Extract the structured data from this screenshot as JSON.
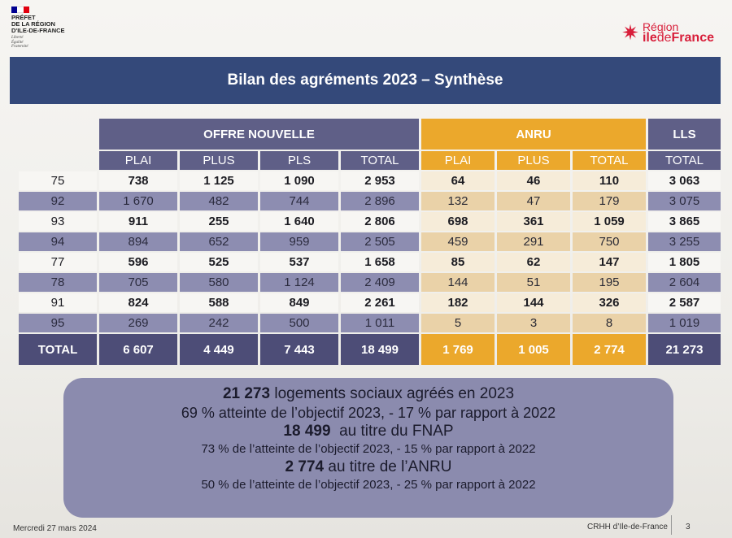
{
  "header": {
    "prefet_title_lines": [
      "PRÉFET",
      "DE LA RÉGION",
      "D'ILE-DE-FRANCE"
    ],
    "prefet_motto": [
      "Liberté",
      "Égalité",
      "Fraternité"
    ],
    "region_logo_line1": "Région",
    "region_logo_ile": "ile",
    "region_logo_de": "de",
    "region_logo_france": "France",
    "colors": {
      "flag_blue": "#000091",
      "flag_white": "#ffffff",
      "flag_red": "#e1000f",
      "region_red": "#d81e3a"
    }
  },
  "title": "Bilan des agréments 2023 – Synthèse",
  "table": {
    "groups": {
      "offre_nouvelle": "OFFRE NOUVELLE",
      "anru": "ANRU",
      "lls": "LLS"
    },
    "subheaders": [
      "PLAI",
      "PLUS",
      "PLS",
      "TOTAL",
      "PLAI",
      "PLUS",
      "TOTAL",
      "TOTAL"
    ],
    "rows": [
      {
        "dept": "75",
        "cells": [
          "738",
          "1 125",
          "1 090",
          "2 953",
          "64",
          "46",
          "110",
          "3 063"
        ]
      },
      {
        "dept": "92",
        "cells": [
          "1 670",
          "482",
          "744",
          "2 896",
          "132",
          "47",
          "179",
          "3 075"
        ]
      },
      {
        "dept": "93",
        "cells": [
          "911",
          "255",
          "1 640",
          "2 806",
          "698",
          "361",
          "1 059",
          "3 865"
        ]
      },
      {
        "dept": "94",
        "cells": [
          "894",
          "652",
          "959",
          "2 505",
          "459",
          "291",
          "750",
          "3 255"
        ]
      },
      {
        "dept": "77",
        "cells": [
          "596",
          "525",
          "537",
          "1 658",
          "85",
          "62",
          "147",
          "1 805"
        ]
      },
      {
        "dept": "78",
        "cells": [
          "705",
          "580",
          "1 124",
          "2 409",
          "144",
          "51",
          "195",
          "2 604"
        ]
      },
      {
        "dept": "91",
        "cells": [
          "824",
          "588",
          "849",
          "2 261",
          "182",
          "144",
          "326",
          "2 587"
        ]
      },
      {
        "dept": "95",
        "cells": [
          "269",
          "242",
          "500",
          "1 011",
          "5",
          "3",
          "8",
          "1 019"
        ]
      }
    ],
    "total_row": {
      "label": "TOTAL",
      "cells": [
        "6 607",
        "4 449",
        "7 443",
        "18 499",
        "1 769",
        "1 005",
        "2 774",
        "21 273"
      ]
    }
  },
  "summary": {
    "line1_value": "21 273",
    "line1_text": " logements sociaux agréés en 2023",
    "line2": "69 % atteinte de l’objectif 2023, - 17 % par rapport à 2022",
    "line3_value": "18 499",
    "line3_text": "  au titre du FNAP",
    "line4": "73 % de l’atteinte de l’objectif 2023, - 15 % par rapport à 2022",
    "line5_value": "2 774",
    "line5_text": " au titre de l’ANRU",
    "line6": "50 % de l’atteinte de l’objectif 2023, - 25 % par rapport à 2022"
  },
  "footer": {
    "date": "Mercredi 27 mars 2024",
    "org": "CRHH d’Ile-de-France",
    "page": "3"
  }
}
